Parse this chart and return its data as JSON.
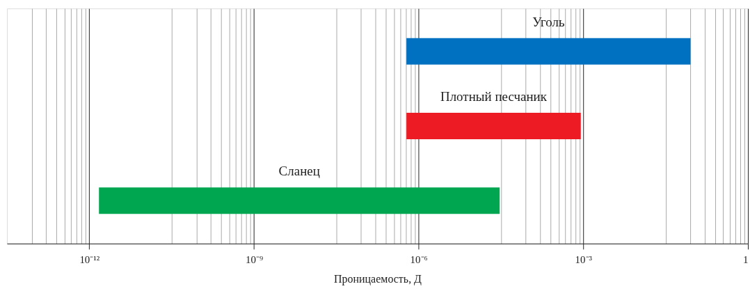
{
  "chart_data": {
    "type": "bar",
    "orientation": "horizontal",
    "xlabel": "Проницаемость, Д",
    "categories": [
      "Уголь",
      "Плотный песчаник",
      "Сланец"
    ],
    "base": [
      6e-07,
      6e-07,
      1.5e-12
    ],
    "values": [
      0.09,
      0.0009,
      3e-05
    ],
    "colors": [
      "#0070c0",
      "#ed1c24",
      "#00a650"
    ],
    "log": "x",
    "grid": "x",
    "tick_labels": "x",
    "xlim": [
      3.16e-14,
      1
    ],
    "xticks": [
      {
        "value": 8.94e-14,
        "label": null
      },
      {
        "value": 1.64e-13,
        "label": null
      },
      {
        "value": 2.53e-13,
        "label": null
      },
      {
        "value": 3.54e-13,
        "label": null
      },
      {
        "value": 4.65e-13,
        "label": null
      },
      {
        "value": 5.86e-13,
        "label": null
      },
      {
        "value": 7.16e-13,
        "label": null
      },
      {
        "value": 8.54e-13,
        "label": null
      },
      {
        "value": 1e-12,
        "label": "10⁻¹²"
      },
      {
        "value": 3.16e-11,
        "label": null
      },
      {
        "value": 8.94e-11,
        "label": null
      },
      {
        "value": 1.64e-10,
        "label": null
      },
      {
        "value": 2.53e-10,
        "label": null
      },
      {
        "value": 3.54e-10,
        "label": null
      },
      {
        "value": 4.65e-10,
        "label": null
      },
      {
        "value": 5.86e-10,
        "label": null
      },
      {
        "value": 7.16e-10,
        "label": null
      },
      {
        "value": 8.54e-10,
        "label": null
      },
      {
        "value": 1e-09,
        "label": "10⁻⁹"
      },
      {
        "value": 3.16e-08,
        "label": null
      },
      {
        "value": 8.94e-08,
        "label": null
      },
      {
        "value": 1.64e-07,
        "label": null
      },
      {
        "value": 2.53e-07,
        "label": null
      },
      {
        "value": 3.54e-07,
        "label": null
      },
      {
        "value": 4.65e-07,
        "label": null
      },
      {
        "value": 5.86e-07,
        "label": null
      },
      {
        "value": 7.16e-07,
        "label": null
      },
      {
        "value": 8.54e-07,
        "label": null
      },
      {
        "value": 1e-06,
        "label": "10⁻⁶"
      },
      {
        "value": 3.16e-05,
        "label": null
      },
      {
        "value": 8.94e-05,
        "label": null
      },
      {
        "value": 0.000164,
        "label": null
      },
      {
        "value": 0.000253,
        "label": null
      },
      {
        "value": 0.000354,
        "label": null
      },
      {
        "value": 0.000465,
        "label": null
      },
      {
        "value": 0.000586,
        "label": null
      },
      {
        "value": 0.000716,
        "label": null
      },
      {
        "value": 0.000854,
        "label": null
      },
      {
        "value": 0.001,
        "label": "10⁻³"
      },
      {
        "value": 0.0316,
        "label": null
      },
      {
        "value": 0.0894,
        "label": null
      },
      {
        "value": 0.164,
        "label": null
      },
      {
        "value": 0.253,
        "label": null
      },
      {
        "value": 0.354,
        "label": null
      },
      {
        "value": 0.465,
        "label": null
      },
      {
        "value": 0.586,
        "label": null
      },
      {
        "value": 0.716,
        "label": null
      },
      {
        "value": 0.854,
        "label": null
      },
      1
    ]
  }
}
